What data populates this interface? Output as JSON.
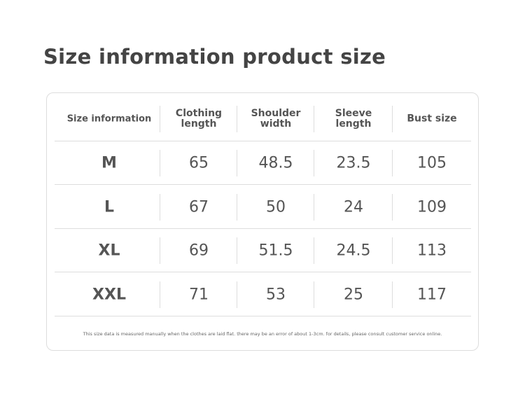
{
  "header": {
    "title": "Size information product size"
  },
  "table": {
    "columns": [
      "Size information",
      "Clothing\nlength",
      "Shoulder\nwidth",
      "Sleeve\nlength",
      "Bust size"
    ],
    "rows": [
      [
        "M",
        "65",
        "48.5",
        "23.5",
        "105"
      ],
      [
        "L",
        "67",
        "50",
        "24",
        "109"
      ],
      [
        "XL",
        "69",
        "51.5",
        "24.5",
        "113"
      ],
      [
        "XXL",
        "71",
        "53",
        "25",
        "117"
      ]
    ]
  },
  "note": "This size data is measured manually when the clothes are laid flat. there may be an error of about 1-3cm. for details, please consult customer service online."
}
